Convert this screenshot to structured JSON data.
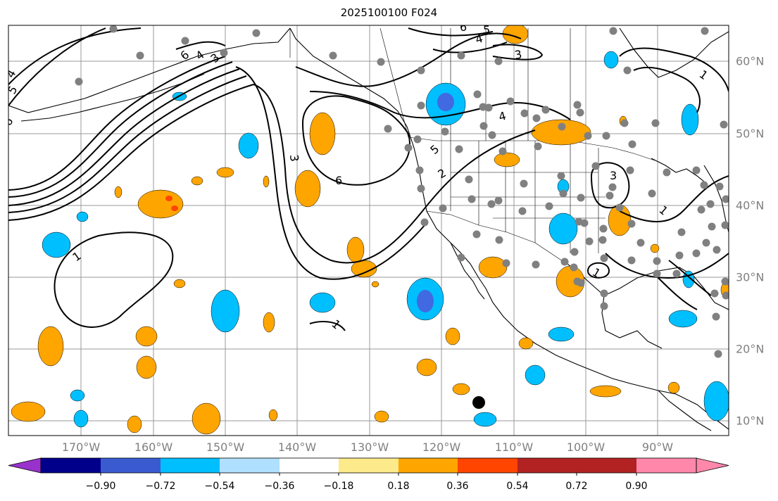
{
  "title": "2025100100 F024",
  "map": {
    "lon_labels": [
      "170°W",
      "160°W",
      "150°W",
      "140°W",
      "130°W",
      "120°W",
      "110°W",
      "100°W",
      "90°W"
    ],
    "lat_labels": [
      "60°N",
      "50°N",
      "40°N",
      "30°N",
      "20°N",
      "10°N"
    ],
    "contour_labels": [
      "1",
      "2",
      "3",
      "4",
      "5",
      "6"
    ],
    "shading_fill_colors": {
      "neg_strong": "#4169e1",
      "neg_mid": "#00bfff",
      "pos_mid": "#ffa500",
      "pos_strong": "#ff4500"
    },
    "station_color": "#808080",
    "marker_color": "#000000"
  },
  "colorbar": {
    "colors": [
      "#9932cc",
      "#00008b",
      "#3a5bd0",
      "#00bfff",
      "#b0e0ff",
      "#ffffff",
      "#fdea8a",
      "#ffa500",
      "#ff4500",
      "#b22222",
      "#ff88aa"
    ],
    "labels": [
      "−0.90",
      "−0.72",
      "−0.54",
      "−0.36",
      "−0.18",
      "0.18",
      "0.36",
      "0.54",
      "0.72",
      "0.90"
    ]
  }
}
